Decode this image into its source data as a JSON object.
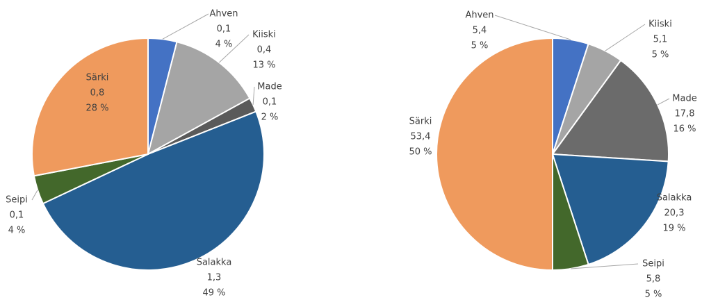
{
  "chart_data": [
    {
      "type": "pie",
      "categories": [
        "Ahven",
        "Kiiski",
        "Made",
        "Salakka",
        "Seipi",
        "Särki"
      ],
      "values": [
        0.1,
        0.4,
        0.1,
        1.3,
        0.1,
        0.8
      ],
      "value_labels": [
        "0,1",
        "0,4",
        "0,1",
        "1,3",
        "0,1",
        "0,8"
      ],
      "percents": [
        4,
        13,
        2,
        49,
        4,
        28
      ],
      "percent_labels": [
        "4 %",
        "13 %",
        "2 %",
        "49 %",
        "4 %",
        "28 %"
      ],
      "colors": [
        "#4472c4",
        "#a5a5a5",
        "#5a5a5a",
        "#255e91",
        "#43682b",
        "#ef9a5d"
      ]
    },
    {
      "type": "pie",
      "categories": [
        "Ahven",
        "Kiiski",
        "Made",
        "Salakka",
        "Seipi",
        "Särki"
      ],
      "values": [
        5.4,
        5.1,
        17.8,
        20.3,
        5.8,
        53.4
      ],
      "value_labels": [
        "5,4",
        "5,1",
        "17,8",
        "20,3",
        "5,8",
        "53,4"
      ],
      "percents": [
        5,
        5,
        16,
        19,
        5,
        50
      ],
      "percent_labels": [
        "5 %",
        "5 %",
        "16 %",
        "19 %",
        "5 %",
        "50 %"
      ],
      "colors": [
        "#4472c4",
        "#a5a5a5",
        "#6b6b6b",
        "#255e91",
        "#43682b",
        "#ef9a5d"
      ]
    }
  ]
}
